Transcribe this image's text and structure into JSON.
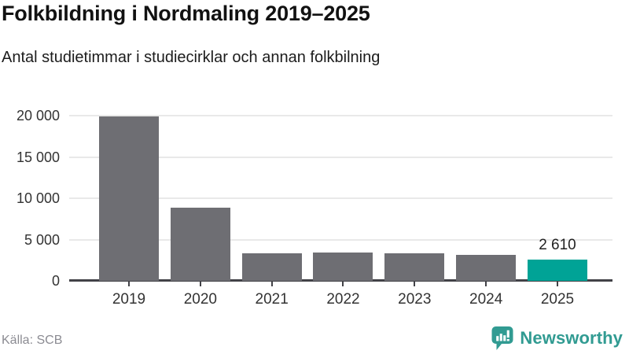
{
  "source": "Källa: SCB",
  "logo": {
    "text": "Newsworthy",
    "icon": "newsworthy-chart-bubble-icon"
  },
  "colors": {
    "bar_default": "#6E6E73",
    "bar_highlight": "#00A396",
    "grid": "#E9E9E9",
    "axis": "#424247",
    "title_text": "#121212",
    "tick_text": "#333333",
    "source_text": "#8B8B92",
    "logo": "#319B92"
  },
  "chart_data": {
    "type": "bar",
    "title": "Folkbildning i Nordmaling 2019–2025",
    "subtitle": "Antal studietimmar i studiecirklar och annan folkbilning",
    "categories": [
      "2019",
      "2020",
      "2021",
      "2022",
      "2023",
      "2024",
      "2025"
    ],
    "values": [
      19900,
      8900,
      3300,
      3400,
      3350,
      3100,
      2610
    ],
    "highlight_index": 6,
    "annotation": {
      "index": 6,
      "text": "2 610"
    },
    "yticks": [
      {
        "value": 20000,
        "label": "20 000"
      },
      {
        "value": 15000,
        "label": "15 000"
      },
      {
        "value": 10000,
        "label": "10 000"
      },
      {
        "value": 5000,
        "label": "5 000"
      },
      {
        "value": 0,
        "label": "0"
      }
    ],
    "ylim": [
      0,
      20000
    ],
    "grid": true,
    "legend": false,
    "xlabel": "",
    "ylabel": ""
  }
}
